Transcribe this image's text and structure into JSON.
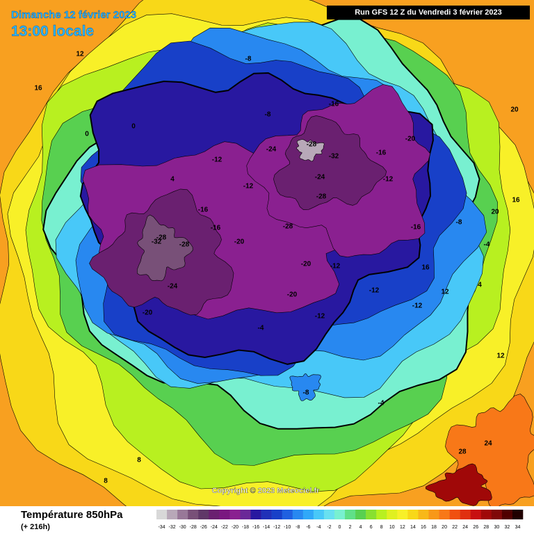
{
  "header": {
    "date": "Dimanche 12 février 2023",
    "time": "13:00 locale",
    "run": "Run GFS 12 Z du Vendredi 3 février 2023"
  },
  "copyright": "Copyright © 2023 Meteociel.fr",
  "footer": {
    "title": "Température 850hPa",
    "lead": "(+ 216h)"
  },
  "colorbar": {
    "ticks": [
      -34,
      -32,
      -30,
      -28,
      -26,
      -24,
      -22,
      -20,
      -18,
      -16,
      -14,
      -12,
      -10,
      -8,
      -6,
      -4,
      -2,
      0,
      2,
      4,
      6,
      8,
      10,
      12,
      14,
      16,
      18,
      20,
      22,
      24,
      26,
      28,
      30,
      32,
      34
    ],
    "colors": [
      "#d8d8d8",
      "#b8a8b8",
      "#987898",
      "#785078",
      "#603868",
      "#6a2070",
      "#7a1880",
      "#8a2090",
      "#6a2898",
      "#2818a0",
      "#2030b8",
      "#1840c8",
      "#2060e0",
      "#2888f0",
      "#30a8f8",
      "#48c8f8",
      "#68e0f0",
      "#78f0d0",
      "#60e088",
      "#58d050",
      "#88e030",
      "#b8f020",
      "#e0f020",
      "#f8f028",
      "#f8d818",
      "#f8b818",
      "#f89818",
      "#f87818",
      "#f05010",
      "#e03010",
      "#c81010",
      "#a00808",
      "#800808",
      "#500000",
      "#200000"
    ]
  },
  "map_labels": [
    -28,
    -32,
    -28,
    -24,
    -20,
    -28,
    -24,
    -32,
    -28,
    -20,
    -24,
    -28,
    -16,
    -16,
    -20,
    -20,
    -16,
    -12,
    -12,
    -12,
    -16,
    -12,
    -8,
    -8,
    -4,
    -4,
    -8,
    -12,
    -12,
    0,
    0,
    4,
    4,
    8,
    8,
    12,
    12,
    16,
    16,
    20,
    20,
    24,
    28,
    12,
    16,
    -20,
    -16,
    -12,
    -8,
    -4
  ]
}
